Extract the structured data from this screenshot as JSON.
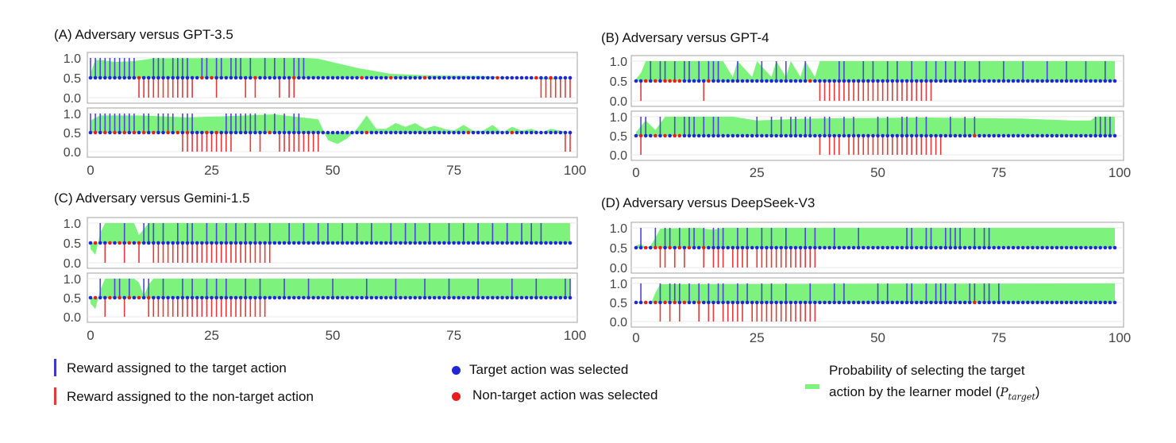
{
  "colors": {
    "target_reward": "#4b46d6",
    "nontarget_reward": "#e23b3b",
    "target_dot": "#1f27d6",
    "nontarget_dot": "#e61e1e",
    "probability_fill": "#7df27d",
    "panel_border": "#a0a0a0",
    "grid": "#e8e8e8"
  },
  "chart_data": [
    {
      "panel": "A",
      "title": "(A) Adversary versus GPT-3.5",
      "type": "area",
      "xlim": [
        0,
        99
      ],
      "ylim": [
        0,
        1
      ],
      "x_ticks": [
        "0",
        "25",
        "50",
        "75",
        "100"
      ],
      "y_ticks": [
        "0.0",
        "0.5",
        "1.0"
      ],
      "series": [
        {
          "target_rewards": [
            0,
            1,
            2,
            3,
            4,
            5,
            6,
            7,
            8,
            9,
            13,
            14,
            15,
            17,
            18,
            19,
            20,
            23,
            24,
            26,
            27,
            29,
            30,
            31,
            33,
            36,
            38,
            40,
            42,
            43,
            44
          ],
          "nontarget_rewards": [
            10,
            11,
            12,
            13,
            14,
            15,
            16,
            17,
            18,
            19,
            20,
            21,
            26,
            32,
            34,
            39,
            41,
            42,
            93,
            94,
            95,
            96,
            97,
            98,
            99
          ],
          "nontarget_selected": [
            10,
            23,
            25,
            34,
            42,
            56,
            62,
            69,
            84,
            92,
            95
          ],
          "prob_points": [
            [
              0,
              0.62
            ],
            [
              1,
              0.95
            ],
            [
              2,
              0.95
            ],
            [
              5,
              0.9
            ],
            [
              9,
              0.92
            ],
            [
              13,
              0.99
            ],
            [
              20,
              0.99
            ],
            [
              44,
              1.0
            ],
            [
              47,
              0.98
            ],
            [
              55,
              0.75
            ],
            [
              62,
              0.6
            ],
            [
              70,
              0.56
            ],
            [
              80,
              0.55
            ],
            [
              90,
              0.5
            ],
            [
              95,
              0.45
            ],
            [
              99,
              0.5
            ]
          ]
        },
        {
          "target_rewards": [
            0,
            1,
            2,
            3,
            4,
            5,
            6,
            7,
            8,
            9,
            11,
            12,
            14,
            15,
            16,
            17,
            19,
            20,
            21,
            28,
            29,
            30,
            31,
            32,
            33,
            34,
            36,
            38,
            40,
            42,
            43
          ],
          "nontarget_rewards": [
            19,
            20,
            21,
            22,
            23,
            24,
            25,
            26,
            27,
            28,
            29,
            33,
            35,
            39,
            40,
            41,
            42,
            43,
            44,
            45,
            46,
            47,
            98,
            99
          ],
          "nontarget_selected": [
            1,
            3,
            5,
            7,
            9,
            11,
            13,
            16,
            18,
            20,
            24,
            26,
            37,
            57,
            78,
            87
          ],
          "prob_points": [
            [
              0,
              0.82
            ],
            [
              2,
              0.95
            ],
            [
              10,
              0.95
            ],
            [
              20,
              0.9
            ],
            [
              28,
              0.93
            ],
            [
              38,
              0.98
            ],
            [
              47,
              0.85
            ],
            [
              49,
              0.3
            ],
            [
              51,
              0.2
            ],
            [
              53,
              0.35
            ],
            [
              55,
              0.6
            ],
            [
              57,
              0.95
            ],
            [
              59,
              0.6
            ],
            [
              61,
              0.6
            ],
            [
              63,
              0.75
            ],
            [
              65,
              0.65
            ],
            [
              67,
              0.75
            ],
            [
              69,
              0.6
            ],
            [
              71,
              0.68
            ],
            [
              73,
              0.6
            ],
            [
              75,
              0.55
            ],
            [
              77,
              0.7
            ],
            [
              79,
              0.55
            ],
            [
              81,
              0.55
            ],
            [
              83,
              0.7
            ],
            [
              85,
              0.5
            ],
            [
              87,
              0.65
            ],
            [
              89,
              0.55
            ],
            [
              91,
              0.6
            ],
            [
              93,
              0.5
            ],
            [
              95,
              0.6
            ],
            [
              97,
              0.55
            ],
            [
              99,
              0.5
            ]
          ]
        }
      ]
    },
    {
      "panel": "B",
      "title": "(B) Adversary versus GPT-4",
      "type": "area",
      "xlim": [
        0,
        99
      ],
      "ylim": [
        0,
        1
      ],
      "x_ticks": [
        "0",
        "25",
        "50",
        "75",
        "100"
      ],
      "y_ticks": [
        "0.0",
        "0.5",
        "1.0"
      ],
      "series": [
        {
          "target_rewards": [
            3,
            5,
            6,
            8,
            10,
            11,
            13,
            15,
            16,
            17,
            21,
            26,
            29,
            31,
            35,
            42,
            43,
            47,
            49,
            52,
            54,
            57,
            60,
            62,
            64,
            66,
            68,
            71,
            76,
            80,
            85,
            89,
            93,
            97
          ],
          "nontarget_rewards": [
            1,
            14,
            38,
            39,
            40,
            41,
            42,
            43,
            44,
            45,
            46,
            47,
            48,
            49,
            50,
            51,
            52,
            53,
            54,
            55,
            56,
            57,
            58,
            59,
            60,
            61
          ],
          "nontarget_selected": [
            2,
            4,
            6,
            7,
            8,
            9,
            15,
            36
          ],
          "prob_points": [
            [
              0,
              0.55
            ],
            [
              1,
              0.7
            ],
            [
              2,
              1.0
            ],
            [
              18,
              1.0
            ],
            [
              20,
              0.6
            ],
            [
              21,
              1.0
            ],
            [
              24,
              0.6
            ],
            [
              25,
              1.0
            ],
            [
              28,
              0.6
            ],
            [
              29,
              1.0
            ],
            [
              31,
              0.6
            ],
            [
              32,
              1.0
            ],
            [
              34,
              0.6
            ],
            [
              35,
              1.0
            ],
            [
              37,
              0.6
            ],
            [
              38,
              1.0
            ],
            [
              99,
              1.0
            ]
          ]
        },
        {
          "target_rewards": [
            1,
            2,
            5,
            8,
            10,
            11,
            12,
            14,
            16,
            17,
            25,
            28,
            30,
            32,
            33,
            35,
            36,
            39,
            40,
            43,
            45,
            50,
            52,
            55,
            56,
            58,
            60,
            65,
            68,
            70,
            95,
            96,
            97,
            98
          ],
          "nontarget_rewards": [
            1,
            38,
            40,
            41,
            42,
            44,
            45,
            46,
            47,
            48,
            49,
            50,
            51,
            52,
            53,
            54,
            55,
            56,
            57,
            58,
            59,
            60,
            61,
            62,
            63
          ],
          "nontarget_selected": [
            1,
            4,
            6,
            8,
            9,
            70
          ],
          "prob_points": [
            [
              0,
              0.6
            ],
            [
              2,
              0.9
            ],
            [
              4,
              0.65
            ],
            [
              6,
              1.0
            ],
            [
              20,
              1.0
            ],
            [
              25,
              0.9
            ],
            [
              35,
              0.95
            ],
            [
              60,
              0.98
            ],
            [
              80,
              0.95
            ],
            [
              90,
              0.9
            ],
            [
              94,
              0.9
            ],
            [
              95,
              1.0
            ],
            [
              99,
              1.0
            ]
          ]
        }
      ]
    },
    {
      "panel": "C",
      "title": "(C) Adversary versus Gemini-1.5",
      "type": "area",
      "xlim": [
        0,
        99
      ],
      "ylim": [
        0,
        1
      ],
      "x_ticks": [
        "0",
        "25",
        "50",
        "75",
        "100"
      ],
      "y_ticks": [
        "0.0",
        "0.5",
        "1.0"
      ],
      "series": [
        {
          "target_rewards": [
            2,
            7,
            11,
            12,
            13,
            15,
            18,
            20,
            21,
            24,
            26,
            28,
            30,
            32,
            34,
            37,
            41,
            44,
            47,
            49,
            52,
            55,
            58,
            62,
            65,
            67,
            70,
            74,
            77,
            80,
            83,
            86,
            89,
            91,
            93
          ],
          "nontarget_rewards": [
            3,
            7,
            10,
            13,
            14,
            15,
            16,
            17,
            18,
            19,
            20,
            21,
            22,
            23,
            24,
            25,
            26,
            27,
            28,
            29,
            30,
            31,
            32,
            33,
            34,
            35,
            36,
            37
          ],
          "nontarget_selected": [
            1,
            4,
            6,
            8,
            10
          ],
          "prob_points": [
            [
              0,
              0.35
            ],
            [
              1,
              0.2
            ],
            [
              2,
              0.75
            ],
            [
              3,
              1.0
            ],
            [
              9,
              1.0
            ],
            [
              10,
              0.7
            ],
            [
              12,
              1.0
            ],
            [
              99,
              1.0
            ]
          ]
        },
        {
          "target_rewards": [
            2,
            5,
            6,
            8,
            11,
            12,
            15,
            19,
            21,
            24,
            26,
            28,
            32,
            35,
            40,
            45,
            50,
            57,
            63,
            69,
            74,
            80,
            87,
            92,
            98,
            99
          ],
          "nontarget_rewards": [
            3,
            7,
            12,
            13,
            14,
            15,
            16,
            17,
            18,
            19,
            20,
            21,
            22,
            23,
            24,
            25,
            26,
            27,
            28,
            29,
            30,
            31,
            32,
            33,
            34,
            35,
            36
          ],
          "nontarget_selected": [
            1,
            4,
            6,
            8,
            10,
            12
          ],
          "prob_points": [
            [
              0,
              0.35
            ],
            [
              1,
              0.2
            ],
            [
              2,
              0.7
            ],
            [
              3,
              1.0
            ],
            [
              9,
              1.0
            ],
            [
              10,
              0.9
            ],
            [
              11,
              0.55
            ],
            [
              12,
              0.85
            ],
            [
              13,
              1.0
            ],
            [
              99,
              1.0
            ]
          ]
        }
      ]
    },
    {
      "panel": "D",
      "title": "(D) Adversary versus DeepSeek-V3",
      "type": "area",
      "xlim": [
        0,
        99
      ],
      "ylim": [
        0,
        1
      ],
      "x_ticks": [
        "0",
        "25",
        "50",
        "75",
        "100"
      ],
      "y_ticks": [
        "0.0",
        "0.5",
        "1.0"
      ],
      "series": [
        {
          "target_rewards": [
            1,
            4,
            6,
            7,
            9,
            11,
            12,
            14,
            16,
            17,
            18,
            21,
            23,
            26,
            28,
            31,
            35,
            37,
            41,
            46,
            56,
            57,
            60,
            61,
            64,
            65,
            66,
            67,
            70,
            72,
            73
          ],
          "nontarget_rewards": [
            5,
            6,
            8,
            10,
            14,
            16,
            17,
            18,
            20,
            21,
            22,
            23,
            25,
            26,
            27,
            28,
            29,
            30,
            31,
            32,
            33,
            34,
            35,
            36,
            37
          ],
          "nontarget_selected": [
            2,
            4,
            5,
            7,
            9,
            11,
            14
          ],
          "prob_points": [
            [
              0,
              0.55
            ],
            [
              1,
              0.6
            ],
            [
              2,
              0.5
            ],
            [
              3,
              0.55
            ],
            [
              4,
              0.75
            ],
            [
              5,
              0.98
            ],
            [
              13,
              1.0
            ],
            [
              16,
              0.95
            ],
            [
              18,
              1.0
            ],
            [
              99,
              1.0
            ]
          ]
        },
        {
          "target_rewards": [
            1,
            5,
            7,
            8,
            9,
            11,
            13,
            15,
            17,
            18,
            21,
            23,
            26,
            28,
            31,
            36,
            41,
            43,
            50,
            52,
            56,
            57,
            60,
            62,
            63,
            64,
            66,
            69,
            70,
            72,
            73,
            75
          ],
          "nontarget_rewards": [
            5,
            7,
            9,
            13,
            15,
            16,
            18,
            19,
            20,
            21,
            22,
            24,
            25,
            26,
            27,
            28,
            29,
            30,
            31,
            32,
            33,
            34,
            35,
            36,
            37
          ],
          "nontarget_selected": [
            2,
            4,
            6,
            8,
            10,
            13,
            70
          ],
          "prob_points": [
            [
              0,
              0.55
            ],
            [
              1,
              0.45
            ],
            [
              2,
              0.55
            ],
            [
              3,
              0.45
            ],
            [
              4,
              0.75
            ],
            [
              5,
              0.98
            ],
            [
              99,
              1.0
            ]
          ]
        }
      ]
    }
  ],
  "legend": {
    "target_reward": "Reward assigned to the target action",
    "nontarget_reward": "Reward assigned to the non-target action",
    "target_selected": "Target action was selected",
    "nontarget_selected": "Non-target action was selected",
    "probability_line1": "Probability of selecting the target",
    "probability_line2": "action by the learner model (",
    "probability_symbol": "P",
    "probability_subscript": "target",
    "probability_close": ")"
  }
}
